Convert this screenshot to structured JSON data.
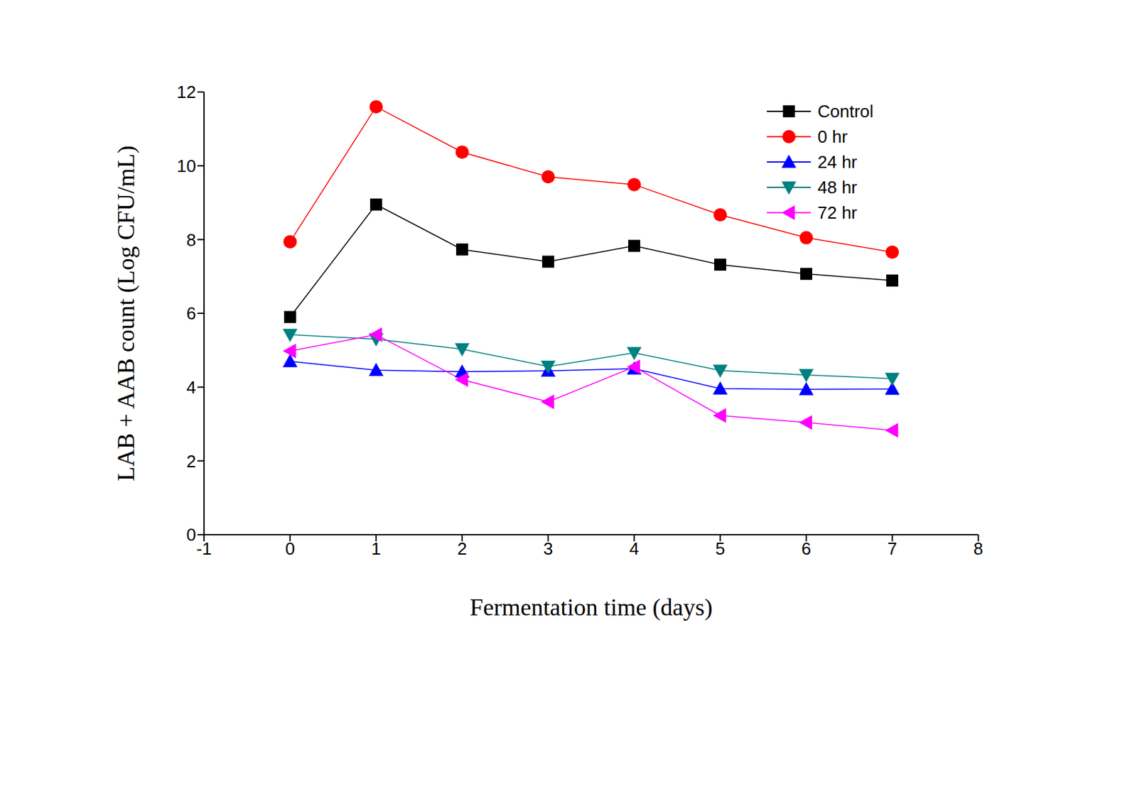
{
  "chart_data": {
    "type": "line",
    "x_label": "Fermentation time (days)",
    "y_label": "LAB + AAB count (Log CFU/mL)",
    "x": [
      0,
      1,
      2,
      3,
      4,
      5,
      6,
      7
    ],
    "xlim": [
      -1,
      8
    ],
    "xticks": [
      -1,
      0,
      1,
      2,
      3,
      4,
      5,
      6,
      7,
      8
    ],
    "ylim": [
      0,
      12
    ],
    "yticks": [
      0,
      2,
      4,
      6,
      8,
      10,
      12
    ],
    "grid": false,
    "legend": "upper right",
    "series": [
      {
        "name": "Control",
        "color": "#000000",
        "marker": "square",
        "values": [
          5.9,
          8.95,
          7.73,
          7.4,
          7.83,
          7.32,
          7.07,
          6.89
        ]
      },
      {
        "name": "0 hr",
        "color": "#ff0000",
        "marker": "circle",
        "values": [
          7.94,
          11.6,
          10.37,
          9.7,
          9.49,
          8.67,
          8.05,
          7.66
        ]
      },
      {
        "name": "24 hr",
        "color": "#0000ff",
        "marker": "triangle-up",
        "values": [
          4.7,
          4.46,
          4.42,
          4.44,
          4.5,
          3.96,
          3.94,
          3.95
        ]
      },
      {
        "name": "48 hr",
        "color": "#008080",
        "marker": "triangle-down",
        "values": [
          5.42,
          5.3,
          5.03,
          4.56,
          4.93,
          4.45,
          4.33,
          4.23
        ]
      },
      {
        "name": "72 hr",
        "color": "#ff00ff",
        "marker": "triangle-left",
        "values": [
          4.98,
          5.42,
          4.2,
          3.6,
          4.55,
          3.23,
          3.04,
          2.83
        ]
      }
    ]
  }
}
